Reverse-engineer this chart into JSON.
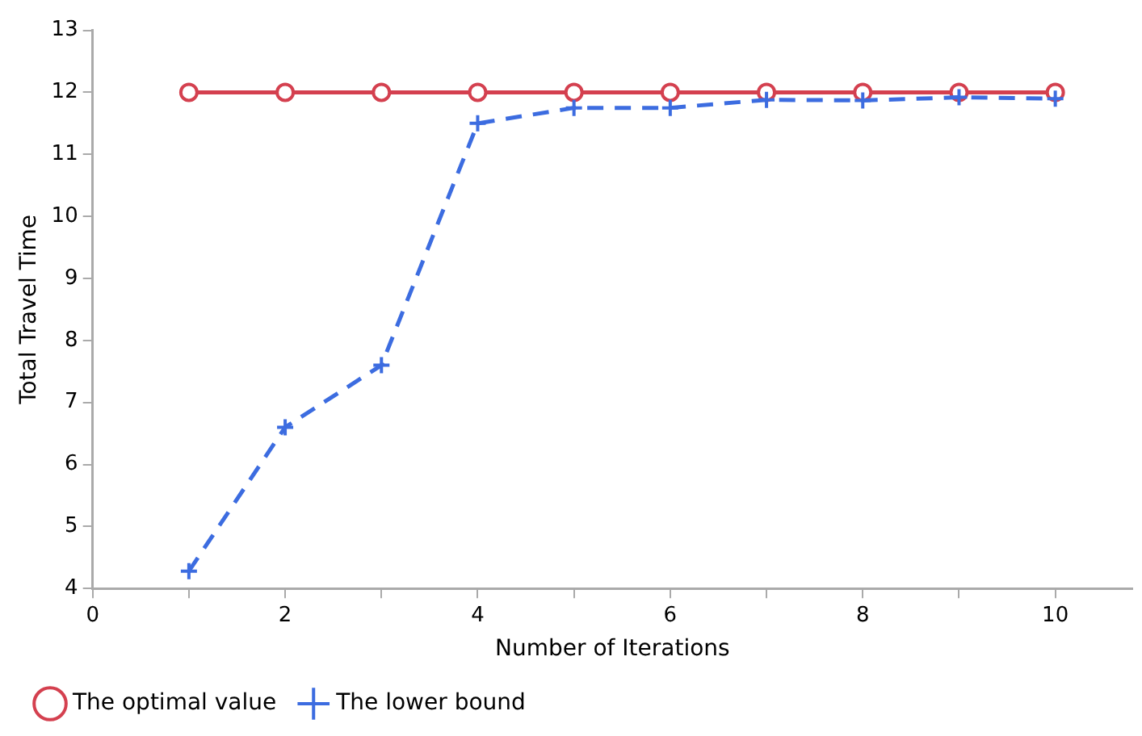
{
  "chart_data": {
    "type": "line",
    "xlabel": "Number of Iterations",
    "ylabel": "Total Travel Time",
    "x": [
      1,
      2,
      3,
      4,
      5,
      6,
      7,
      8,
      9,
      10
    ],
    "series": [
      {
        "name": "The optimal value",
        "color": "#d4404f",
        "marker": "circle",
        "line_style": "solid",
        "values": [
          12,
          12,
          12,
          12,
          12,
          12,
          12,
          12,
          12,
          12
        ]
      },
      {
        "name": "The lower bound",
        "color": "#3c6ce0",
        "marker": "cross",
        "line_style": "dashed",
        "values": [
          4.28,
          6.6,
          7.6,
          11.5,
          11.75,
          11.75,
          11.88,
          11.87,
          11.92,
          11.9
        ]
      }
    ],
    "xlim": [
      0,
      10.8
    ],
    "xticks": [
      0,
      {
        "value": 1,
        "label": null
      },
      2,
      {
        "value": 3,
        "label": null
      },
      4,
      {
        "value": 5,
        "label": null
      },
      6,
      {
        "value": 7,
        "label": null
      },
      8,
      {
        "value": 9,
        "label": null
      },
      10
    ],
    "ylim": [
      4,
      13
    ],
    "yticks": [
      4,
      5,
      6,
      7,
      8,
      9,
      10,
      11,
      12,
      13
    ],
    "grid": false,
    "legend": "bottom left"
  }
}
